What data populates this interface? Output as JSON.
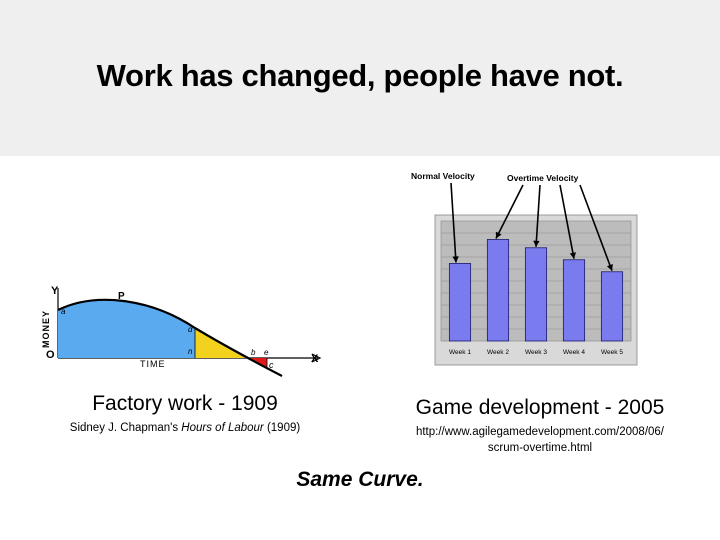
{
  "slide": {
    "title": "Work has changed, people have not.",
    "conclusion": "Same Curve."
  },
  "left_figure": {
    "caption": "Factory work - 1909",
    "credit_prefix": "Sidney J. Chapman's ",
    "credit_book": "Hours of Labour",
    "credit_suffix": " (1909)",
    "axis_y_label": "MONEY",
    "axis_x_label": "TIME",
    "axis_y_letter": "Y",
    "axis_x_letter": "X",
    "origin_label": "O",
    "point_labels": [
      "a",
      "P",
      "d",
      "n",
      "b",
      "e",
      "c"
    ],
    "colors": {
      "area_positive": "#5aaaf0",
      "area_diminishing": "#f2d21c",
      "area_negative": "#e01818"
    }
  },
  "right_figure": {
    "caption": "Game development - 2005",
    "source_line1": "http://www.agilegamedevelopment.com/2008/06/",
    "source_line2": "scrum-overtime.html",
    "label_normal": "Normal Velocity",
    "label_overtime": "Overtime Velocity",
    "bar_color": "#7b7bf0",
    "chart_data": {
      "type": "bar",
      "categories": [
        "Week 1",
        "Week 2",
        "Week 3",
        "Week 4",
        "Week 5"
      ],
      "values": [
        84,
        110,
        101,
        88,
        75
      ],
      "ylim": [
        0,
        130
      ],
      "grid": true
    }
  }
}
